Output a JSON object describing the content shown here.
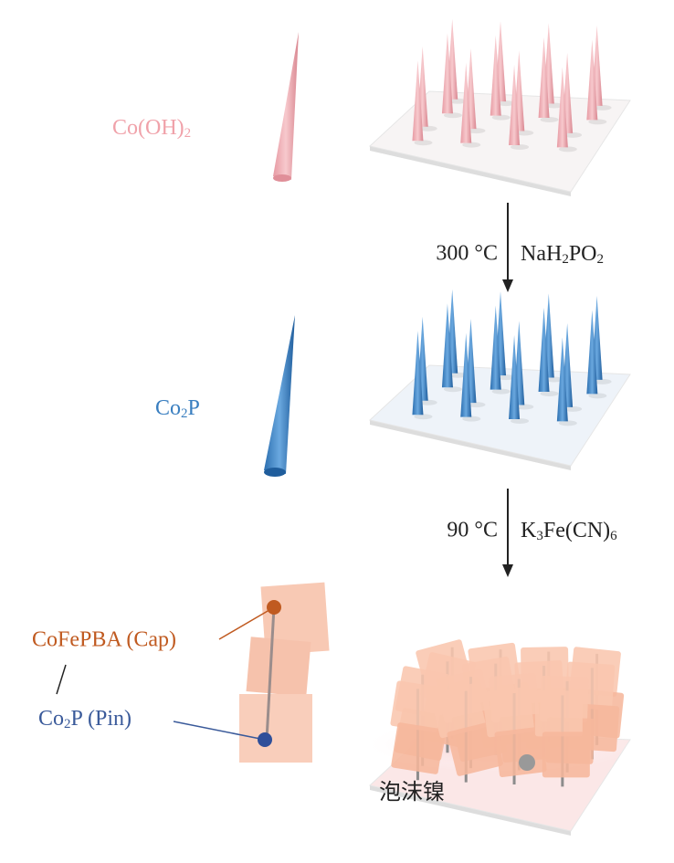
{
  "stages": [
    {
      "label": [
        {
          "text": "Co(OH)"
        },
        {
          "text": "2",
          "sub": true
        }
      ]
    },
    {
      "label": [
        {
          "text": "Co"
        },
        {
          "text": "2",
          "sub": true
        },
        {
          "text": "P"
        }
      ]
    }
  ],
  "steps": [
    {
      "temperature": "300 °C",
      "reagent": [
        {
          "text": "NaH"
        },
        {
          "text": "2",
          "sub": true
        },
        {
          "text": "PO"
        },
        {
          "text": "2",
          "sub": true
        }
      ]
    },
    {
      "temperature": "90 °C",
      "reagent": [
        {
          "text": "K"
        },
        {
          "text": "3",
          "sub": true
        },
        {
          "text": "Fe(CN)"
        },
        {
          "text": "6",
          "sub": true
        }
      ]
    }
  ],
  "annotations": {
    "cap": "CoFePBA (Cap)",
    "pin": [
      {
        "text": "Co"
      },
      {
        "text": "2",
        "sub": true
      },
      {
        "text": "P (Pin)"
      }
    ],
    "substrate": "泡沫镍"
  }
}
